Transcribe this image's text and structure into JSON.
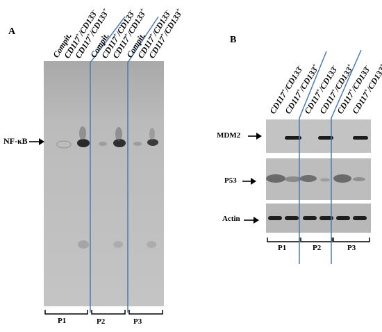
{
  "panelA": {
    "letter": "A",
    "lanes": [
      {
        "group": "Compit.",
        "sup": ""
      },
      {
        "group": "CD117",
        "sup": "+",
        "rest": "/CD133",
        "sup2": "-"
      },
      {
        "group": "CD117",
        "sup": "+",
        "rest": "/CD133",
        "sup2": "+"
      },
      {
        "group": "Compit.",
        "sup": ""
      },
      {
        "group": "CD117",
        "sup": "+",
        "rest": "/CD133",
        "sup2": "-"
      },
      {
        "group": "CD117",
        "sup": "+",
        "rest": "/CD133",
        "sup2": "+"
      },
      {
        "group": "Compit.",
        "sup": ""
      },
      {
        "group": "CD117",
        "sup": "+",
        "rest": "/CD133",
        "sup2": "-"
      },
      {
        "group": "CD117",
        "sup": "+",
        "rest": "/CD133",
        "sup2": "+"
      }
    ],
    "band_label": "NF-κB",
    "patients": [
      "P1",
      "P2",
      "P3"
    ]
  },
  "panelB": {
    "letter": "B",
    "lanes": [
      {
        "group": "CD117",
        "sup": "+",
        "rest": "/CD133",
        "sup2": "-"
      },
      {
        "group": "CD117",
        "sup": "+",
        "rest": "/CD133",
        "sup2": "+"
      },
      {
        "group": "CD117",
        "sup": "+",
        "rest": "/CD133",
        "sup2": "-"
      },
      {
        "group": "CD117",
        "sup": "+",
        "rest": "/CD133",
        "sup2": "+"
      },
      {
        "group": "CD117",
        "sup": "+",
        "rest": "/CD133",
        "sup2": "-"
      },
      {
        "group": "CD117",
        "sup": "+",
        "rest": "/CD133",
        "sup2": "+"
      }
    ],
    "bands": [
      "MDM2",
      "P53",
      "Actin"
    ],
    "patients": [
      "P1",
      "P2",
      "P3"
    ]
  },
  "colors": {
    "divider": "#4a7ab8",
    "gel_bg": "#b9b9b9",
    "band": "#1a1a1a"
  }
}
